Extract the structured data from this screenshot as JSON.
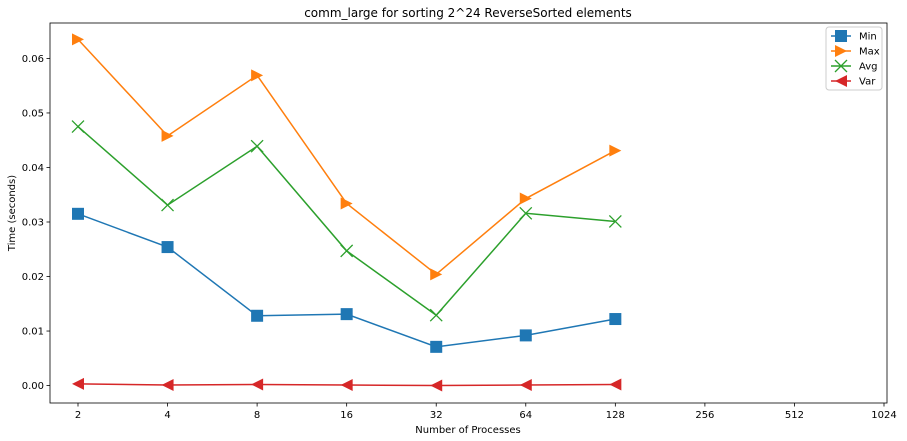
{
  "chart_data": {
    "type": "line",
    "title": "comm_large for sorting 2^24 ReverseSorted elements",
    "xlabel": "Number of Processes",
    "ylabel": "Time (seconds)",
    "x_scale": "log2",
    "x_ticks": [
      2,
      4,
      8,
      16,
      32,
      64,
      128,
      256,
      512,
      1024
    ],
    "x_tick_labels": [
      "2",
      "4",
      "8",
      "16",
      "32",
      "64",
      "128",
      "256",
      "512",
      "1024"
    ],
    "ylim": [
      -0.0032,
      0.0665
    ],
    "y_ticks": [
      0.0,
      0.01,
      0.02,
      0.03,
      0.04,
      0.05,
      0.06
    ],
    "y_tick_labels": [
      "0.00",
      "0.01",
      "0.02",
      "0.03",
      "0.04",
      "0.05",
      "0.06"
    ],
    "grid": false,
    "legend_position": "top-right",
    "x": [
      2,
      4,
      8,
      16,
      32,
      64,
      128
    ],
    "series": [
      {
        "name": "Min",
        "color": "#1f77b4",
        "marker": "square",
        "values": [
          0.0315,
          0.0254,
          0.0128,
          0.0131,
          0.0071,
          0.0092,
          0.0122
        ]
      },
      {
        "name": "Max",
        "color": "#ff7f0e",
        "marker": "triangle-right",
        "values": [
          0.0635,
          0.0458,
          0.0569,
          0.0334,
          0.0204,
          0.0343,
          0.0431
        ]
      },
      {
        "name": "Avg",
        "color": "#2ca02c",
        "marker": "x",
        "values": [
          0.0475,
          0.0331,
          0.0439,
          0.0247,
          0.0129,
          0.0316,
          0.0301
        ]
      },
      {
        "name": "Var",
        "color": "#d62728",
        "marker": "triangle-left",
        "values": [
          0.0003,
          0.0001,
          0.0002,
          0.0001,
          0.0,
          0.0001,
          0.0002
        ]
      }
    ]
  }
}
